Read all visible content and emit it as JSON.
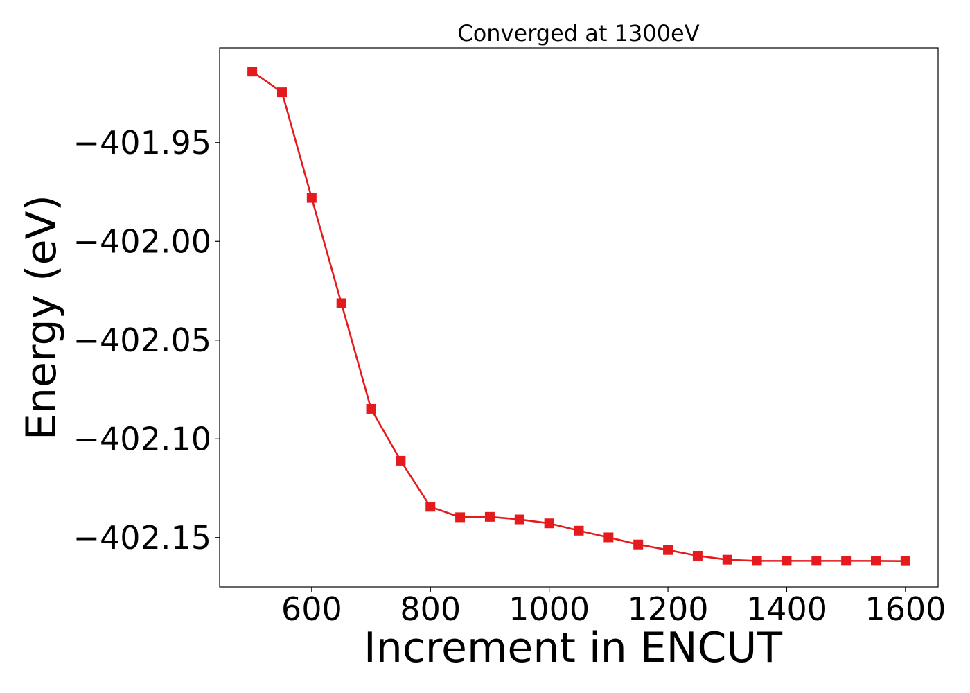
{
  "chart_data": {
    "type": "line",
    "title": "Converged at 1300eV",
    "xlabel": "Increment in ENCUT",
    "ylabel": "Energy (eV)",
    "xlim": [
      445,
      1655
    ],
    "ylim": [
      -402.175,
      -401.902
    ],
    "xticks": [
      600,
      800,
      1000,
      1200,
      1400,
      1600
    ],
    "xtick_labels": [
      "600",
      "800",
      "1000",
      "1200",
      "1400",
      "1600"
    ],
    "yticks": [
      -401.95,
      -402.0,
      -402.05,
      -402.1,
      -402.15
    ],
    "ytick_labels": [
      "−401.95",
      "−402.00",
      "−402.05",
      "−402.10",
      "−402.15"
    ],
    "grid": false,
    "series": [
      {
        "color": "#e41a1c",
        "marker": "square",
        "x": [
          500,
          550,
          600,
          650,
          700,
          750,
          800,
          850,
          900,
          950,
          1000,
          1050,
          1100,
          1150,
          1200,
          1250,
          1300,
          1350,
          1400,
          1450,
          1500,
          1550,
          1600
        ],
        "y": [
          -401.914,
          -401.9245,
          -401.978,
          -402.0313,
          -402.0848,
          -402.1111,
          -402.1344,
          -402.1397,
          -402.1395,
          -402.1408,
          -402.1428,
          -402.1465,
          -402.1499,
          -402.1535,
          -402.1563,
          -402.1592,
          -402.1612,
          -402.1618,
          -402.1618,
          -402.1618,
          -402.1618,
          -402.1618,
          -402.1619
        ]
      }
    ]
  }
}
